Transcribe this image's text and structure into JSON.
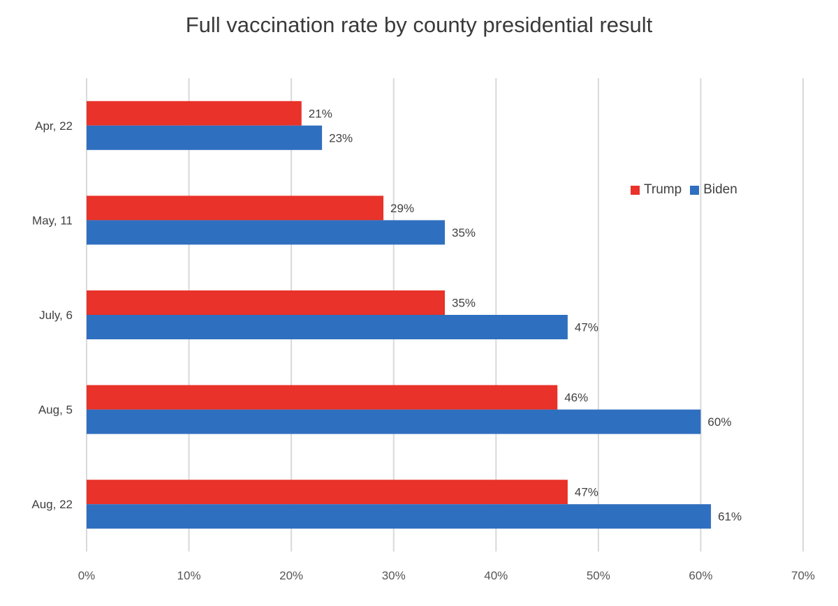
{
  "chart_data": {
    "type": "bar",
    "orientation": "horizontal",
    "title": "Full vaccination rate by county presidential result",
    "categories": [
      "Apr, 22",
      "May, 11",
      "July, 6",
      "Aug, 5",
      "Aug, 22"
    ],
    "series": [
      {
        "name": "Trump",
        "color": "#e8322a",
        "values": [
          21,
          29,
          35,
          46,
          47
        ],
        "labels": [
          "21%",
          "29%",
          "35%",
          "46%",
          "47%"
        ]
      },
      {
        "name": "Biden",
        "color": "#2f6fbf",
        "values": [
          23,
          35,
          47,
          60,
          61
        ],
        "labels": [
          "23%",
          "35%",
          "47%",
          "60%",
          "61%"
        ]
      }
    ],
    "xlim": [
      0,
      70
    ],
    "xticks": [
      0,
      10,
      20,
      30,
      40,
      50,
      60,
      70
    ],
    "xtick_labels": [
      "0%",
      "10%",
      "20%",
      "30%",
      "40%",
      "50%",
      "60%",
      "70%"
    ],
    "grid": "vertical",
    "legend_position": "right"
  }
}
